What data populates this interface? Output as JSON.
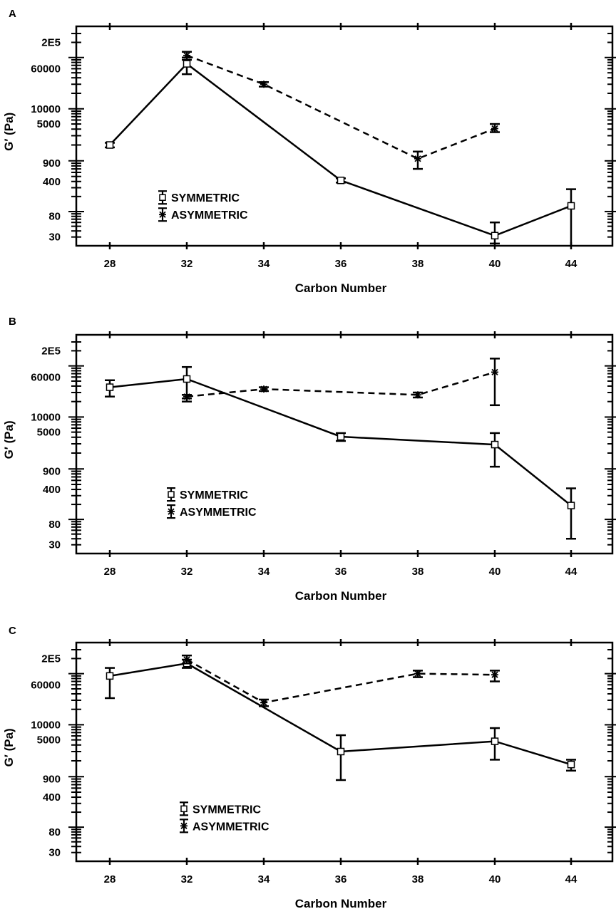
{
  "chart_data": [
    {
      "panel": "A",
      "type": "line",
      "xlabel": "Carbon Number",
      "ylabel": "G′ (Pa)",
      "categories": [
        "28",
        "32",
        "34",
        "36",
        "38",
        "40",
        "44"
      ],
      "yscale": "log",
      "yticks": [
        "2E5",
        "60000",
        "10000",
        "5000",
        "900",
        "400",
        "80",
        "30"
      ],
      "ylim": [
        22,
        300000
      ],
      "legend_position": "center-left",
      "series": [
        {
          "name": "SYMMETRIC",
          "style": "solid",
          "marker": "square",
          "x": [
            "28",
            "32",
            "36",
            "40",
            "44"
          ],
          "values": [
            2000,
            75000,
            420,
            32,
            130
          ],
          "err_low": [
            1800,
            47000,
            380,
            22,
            0
          ],
          "err_high": [
            2200,
            100000,
            460,
            60,
            280
          ]
        },
        {
          "name": "ASYMMETRIC",
          "style": "dashed",
          "marker": "asterisk",
          "x": [
            "32",
            "34",
            "38",
            "40"
          ],
          "values": [
            110000,
            30000,
            1100,
            4100
          ],
          "err_low": [
            90000,
            27000,
            700,
            3500
          ],
          "err_high": [
            130000,
            33000,
            1500,
            5000
          ]
        }
      ]
    },
    {
      "panel": "B",
      "type": "line",
      "xlabel": "Carbon Number",
      "ylabel": "G′ (Pa)",
      "categories": [
        "28",
        "32",
        "34",
        "36",
        "38",
        "40",
        "44"
      ],
      "yscale": "log",
      "yticks": [
        "2E5",
        "60000",
        "10000",
        "5000",
        "900",
        "400",
        "80",
        "30"
      ],
      "ylim": [
        22,
        300000
      ],
      "legend_position": "center-left",
      "series": [
        {
          "name": "SYMMETRIC",
          "style": "solid",
          "marker": "square",
          "x": [
            "28",
            "32",
            "36",
            "40",
            "44"
          ],
          "values": [
            38000,
            55000,
            4100,
            2900,
            190
          ],
          "err_low": [
            25000,
            20000,
            3400,
            1100,
            40
          ],
          "err_high": [
            52000,
            95000,
            4800,
            4800,
            420
          ]
        },
        {
          "name": "ASYMMETRIC",
          "style": "dashed",
          "marker": "asterisk",
          "x": [
            "32",
            "34",
            "38",
            "40"
          ],
          "values": [
            25000,
            35000,
            27000,
            75000
          ],
          "err_low": [
            23000,
            32000,
            24000,
            17000
          ],
          "err_high": [
            27000,
            38000,
            30000,
            140000
          ]
        }
      ]
    },
    {
      "panel": "C",
      "type": "line",
      "xlabel": "Carbon Number",
      "ylabel": "G′ (Pa)",
      "categories": [
        "28",
        "32",
        "34",
        "36",
        "38",
        "40",
        "44"
      ],
      "yscale": "log",
      "yticks": [
        "2E5",
        "60000",
        "10000",
        "5000",
        "900",
        "400",
        "80",
        "30"
      ],
      "ylim": [
        22,
        300000
      ],
      "legend_position": "lower-left",
      "series": [
        {
          "name": "SYMMETRIC",
          "style": "solid",
          "marker": "square",
          "x": [
            "28",
            "32",
            "36",
            "40",
            "44"
          ],
          "values": [
            90000,
            160000,
            3000,
            4700,
            1700
          ],
          "err_low": [
            33000,
            130000,
            860,
            2100,
            1300
          ],
          "err_high": [
            130000,
            190000,
            6200,
            8600,
            2100
          ]
        },
        {
          "name": "ASYMMETRIC",
          "style": "dashed",
          "marker": "asterisk",
          "x": [
            "32",
            "34",
            "38",
            "40"
          ],
          "values": [
            190000,
            27000,
            100000,
            95000
          ],
          "err_low": [
            160000,
            23000,
            85000,
            70000
          ],
          "err_high": [
            230000,
            31000,
            115000,
            115000
          ]
        }
      ]
    }
  ]
}
